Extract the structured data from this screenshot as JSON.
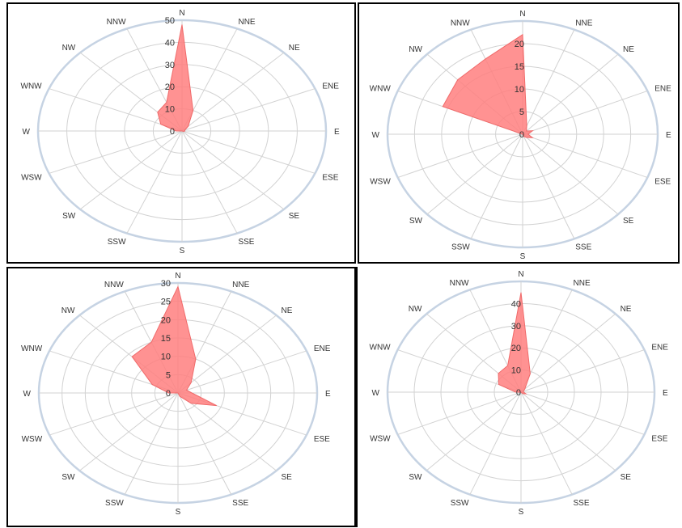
{
  "chart_data": [
    {
      "type": "radar",
      "directions": [
        "N",
        "NNE",
        "NE",
        "ENE",
        "E",
        "ESE",
        "SE",
        "SSE",
        "S",
        "SSW",
        "SW",
        "WSW",
        "W",
        "WNW",
        "NW",
        "NNW"
      ],
      "radial_ticks": [
        "0",
        "10",
        "20",
        "30",
        "40",
        "50"
      ],
      "rmax": 50,
      "values": [
        48,
        10,
        3,
        1,
        1,
        0.5,
        0,
        0,
        0,
        0,
        0,
        0,
        2,
        8,
        12,
        14
      ],
      "series_color": "#ff7f7f"
    },
    {
      "type": "radar",
      "directions": [
        "N",
        "NNE",
        "NE",
        "ENE",
        "E",
        "ESE",
        "SE",
        "SSE",
        "S",
        "SSW",
        "SW",
        "WSW",
        "W",
        "WNW",
        "NW",
        "NNW"
      ],
      "radial_ticks": [
        "0",
        "5",
        "10",
        "15",
        "20"
      ],
      "rmax": 25,
      "values": [
        22,
        2,
        1,
        2,
        1,
        2,
        1,
        0.5,
        0,
        0,
        0,
        0,
        0,
        16,
        17,
        18
      ],
      "series_color": "#ff7f7f"
    },
    {
      "type": "radar",
      "directions": [
        "N",
        "NNE",
        "NE",
        "ENE",
        "E",
        "ESE",
        "SE",
        "SSE",
        "S",
        "SSW",
        "SW",
        "WSW",
        "W",
        "WNW",
        "NW",
        "NNW"
      ],
      "radial_ticks": [
        "0",
        "5",
        "10",
        "15",
        "20",
        "25",
        "30"
      ],
      "rmax": 30,
      "values": [
        29,
        10,
        4,
        2,
        3,
        9,
        4,
        1,
        0,
        0,
        0,
        0,
        2,
        6,
        14,
        15
      ],
      "series_color": "#ff7f7f"
    },
    {
      "type": "radar",
      "directions": [
        "N",
        "NNE",
        "NE",
        "ENE",
        "E",
        "ESE",
        "SE",
        "SSE",
        "S",
        "SSW",
        "SW",
        "WSW",
        "W",
        "WNW",
        "NW",
        "NNW"
      ],
      "radial_ticks": [
        "0",
        "10",
        "20",
        "30",
        "40"
      ],
      "rmax": 50,
      "values": [
        45,
        9,
        2,
        1,
        1,
        2,
        1,
        0,
        0,
        0,
        0,
        0,
        2,
        9,
        12,
        13
      ],
      "series_color": "#ff7f7f"
    }
  ]
}
